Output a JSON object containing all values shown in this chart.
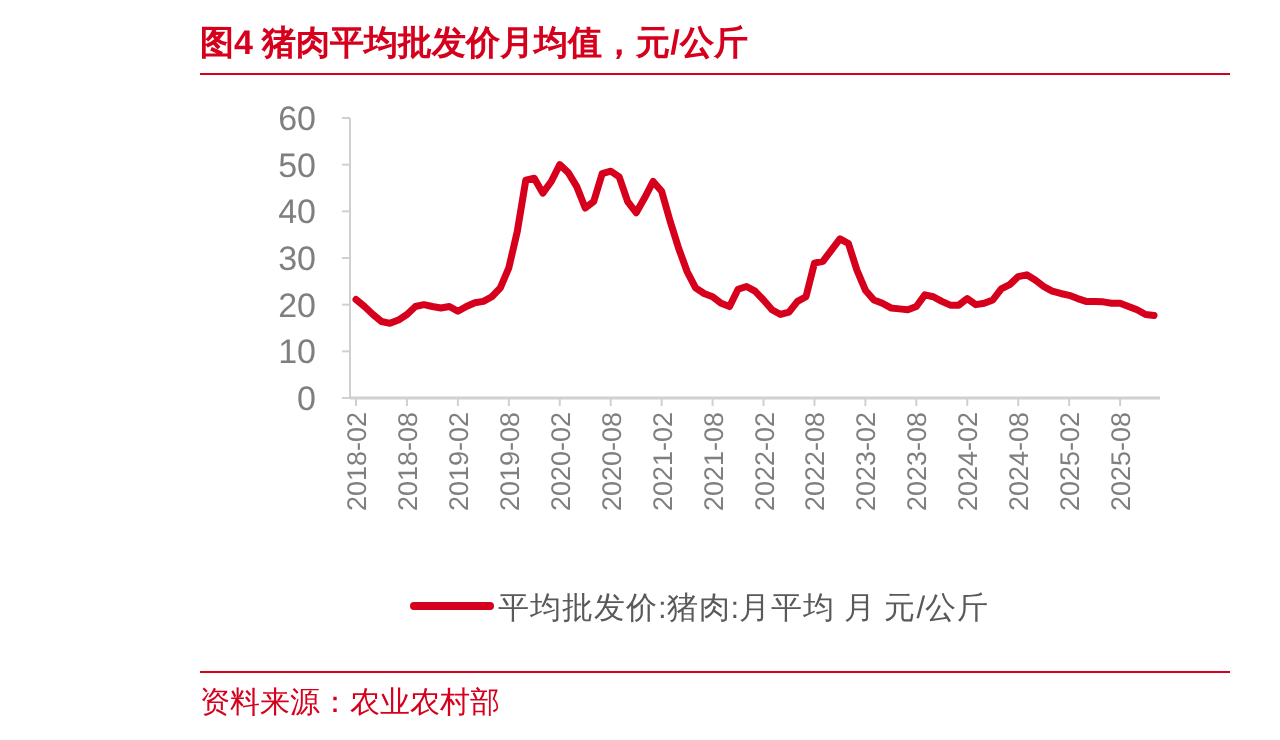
{
  "chart_data": {
    "type": "line",
    "title": "图4  猪肉平均批发价月均值，元/公斤",
    "categories": [
      "2018-02",
      null,
      null,
      null,
      null,
      null,
      "2018-08",
      null,
      null,
      null,
      null,
      null,
      "2019-02",
      null,
      null,
      null,
      null,
      null,
      "2019-08",
      null,
      null,
      null,
      null,
      null,
      "2020-02",
      null,
      null,
      null,
      null,
      null,
      "2020-08",
      null,
      null,
      null,
      null,
      null,
      "2021-02",
      null,
      null,
      null,
      null,
      null,
      "2021-08",
      null,
      null,
      null,
      null,
      null,
      "2022-02",
      null,
      null,
      null,
      null,
      null,
      "2022-08",
      null,
      null,
      null,
      null,
      null,
      "2023-02",
      null,
      null,
      null,
      null,
      null,
      "2023-08",
      null,
      null,
      null,
      null,
      null,
      "2024-02",
      null,
      null,
      null,
      null,
      null,
      "2024-08",
      null,
      null,
      null,
      null,
      null,
      "2025-02",
      null,
      null,
      null,
      null,
      null,
      "2025-08",
      null,
      null,
      null,
      null
    ],
    "series": [
      {
        "name": "平均批发价:猪肉:月平均 月 元/公斤",
        "color": "#d6001c",
        "values": [
          21.1,
          19.6,
          17.9,
          16.4,
          16,
          16.7,
          17.9,
          19.6,
          20,
          19.6,
          19.3,
          19.6,
          18.6,
          19.6,
          20.4,
          20.7,
          21.7,
          23.6,
          27.9,
          35.7,
          46.7,
          47.1,
          43.9,
          46.4,
          50,
          48.3,
          45.3,
          40.7,
          42.1,
          48.1,
          48.6,
          47.4,
          42.1,
          39.7,
          42.9,
          46.4,
          44.3,
          37.9,
          32.1,
          27.1,
          23.6,
          22.4,
          21.7,
          20.3,
          19.6,
          23.3,
          23.9,
          22.9,
          21,
          18.9,
          17.9,
          18.4,
          20.7,
          21.7,
          28.9,
          29.3,
          31.7,
          34.1,
          33.1,
          27.4,
          23.1,
          21,
          20.3,
          19.3,
          19.1,
          18.9,
          19.6,
          22.1,
          21.7,
          20.7,
          19.9,
          19.9,
          21.3,
          20,
          20.3,
          21,
          23.4,
          24.3,
          26,
          26.4,
          25.3,
          23.9,
          22.9,
          22.4,
          22,
          21.3,
          20.7,
          20.7,
          20.6,
          20.3,
          20.3,
          19.6,
          18.9,
          17.9,
          17.7
        ]
      }
    ],
    "ylim": [
      0,
      60
    ],
    "yticks": [
      0,
      10,
      20,
      30,
      40,
      50,
      60
    ],
    "grid": false,
    "legend": "bottom",
    "marker": "none",
    "annotations": [
      "资料来源：农业农村部"
    ]
  }
}
